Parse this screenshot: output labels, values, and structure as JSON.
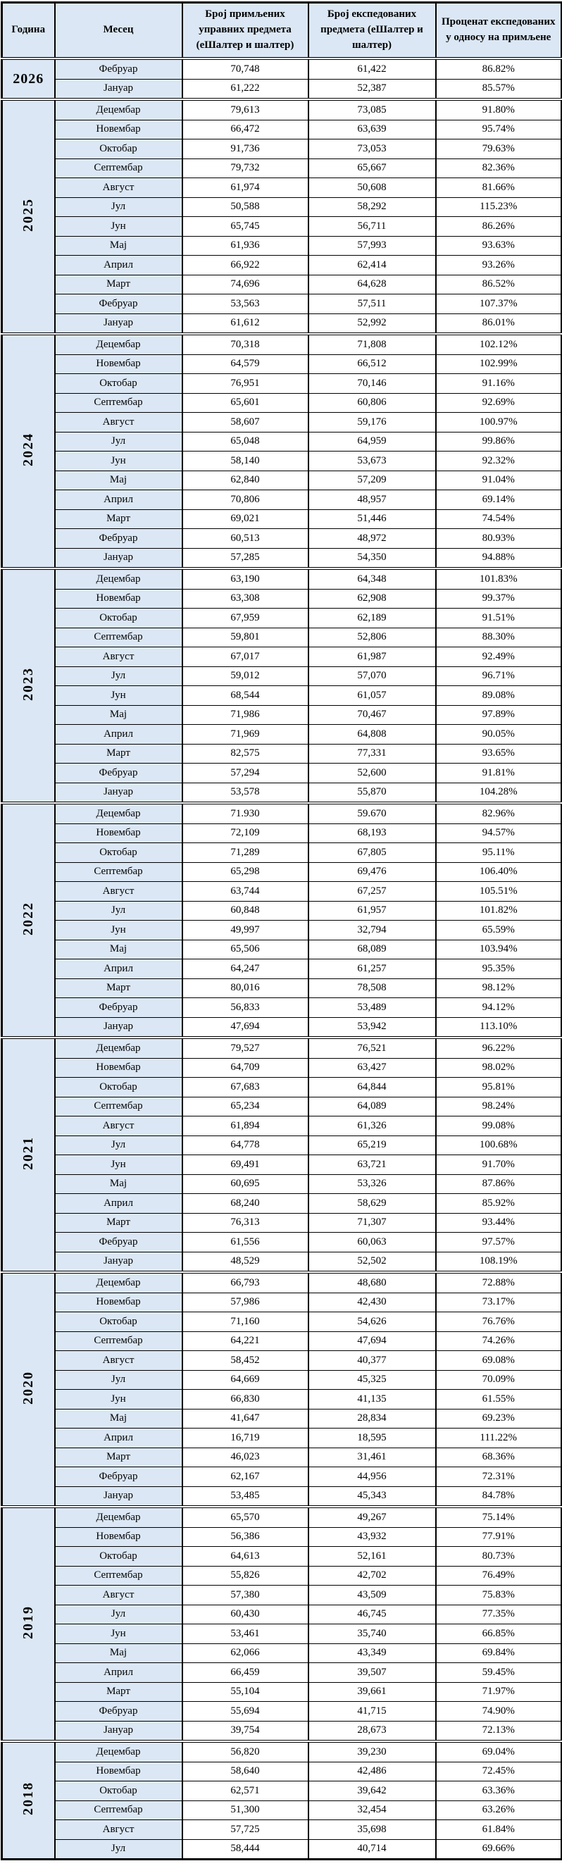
{
  "colors": {
    "header_bg": "#dbe7f4",
    "label_bg": "#dbe7f4",
    "data_bg": "#ffffff",
    "border": "#000000",
    "text": "#000000"
  },
  "headers": {
    "year": "Година",
    "month": "Месец",
    "received": "Број примљених управних предмета (еШалтер и шалтер)",
    "dispatched": "Број експедованих предмета (еШалтер и шалтер)",
    "percent": "Проценат експедованих у односу на примљене"
  },
  "groups": [
    {
      "year": "2026",
      "rows": [
        {
          "month": "Фебруар",
          "received": "70,748",
          "dispatched": "61,422",
          "percent": "86.82%"
        },
        {
          "month": "Јануар",
          "received": "61,222",
          "dispatched": "52,387",
          "percent": "85.57%"
        }
      ]
    },
    {
      "year": "2025",
      "rows": [
        {
          "month": "Децембар",
          "received": "79,613",
          "dispatched": "73,085",
          "percent": "91.80%"
        },
        {
          "month": "Новембар",
          "received": "66,472",
          "dispatched": "63,639",
          "percent": "95.74%"
        },
        {
          "month": "Октобар",
          "received": "91,736",
          "dispatched": "73,053",
          "percent": "79.63%"
        },
        {
          "month": "Септембар",
          "received": "79,732",
          "dispatched": "65,667",
          "percent": "82.36%"
        },
        {
          "month": "Август",
          "received": "61,974",
          "dispatched": "50,608",
          "percent": "81.66%"
        },
        {
          "month": "Јул",
          "received": "50,588",
          "dispatched": "58,292",
          "percent": "115.23%"
        },
        {
          "month": "Јун",
          "received": "65,745",
          "dispatched": "56,711",
          "percent": "86.26%"
        },
        {
          "month": "Мај",
          "received": "61,936",
          "dispatched": "57,993",
          "percent": "93.63%"
        },
        {
          "month": "Април",
          "received": "66,922",
          "dispatched": "62,414",
          "percent": "93.26%"
        },
        {
          "month": "Март",
          "received": "74,696",
          "dispatched": "64,628",
          "percent": "86.52%"
        },
        {
          "month": "Фебруар",
          "received": "53,563",
          "dispatched": "57,511",
          "percent": "107.37%"
        },
        {
          "month": "Јануар",
          "received": "61,612",
          "dispatched": "52,992",
          "percent": "86.01%"
        }
      ]
    },
    {
      "year": "2024",
      "rows": [
        {
          "month": "Децембар",
          "received": "70,318",
          "dispatched": "71,808",
          "percent": "102.12%"
        },
        {
          "month": "Новембар",
          "received": "64,579",
          "dispatched": "66,512",
          "percent": "102.99%"
        },
        {
          "month": "Октобар",
          "received": "76,951",
          "dispatched": "70,146",
          "percent": "91.16%"
        },
        {
          "month": "Септембар",
          "received": "65,601",
          "dispatched": "60,806",
          "percent": "92.69%"
        },
        {
          "month": "Август",
          "received": "58,607",
          "dispatched": "59,176",
          "percent": "100.97%"
        },
        {
          "month": "Јул",
          "received": "65,048",
          "dispatched": "64,959",
          "percent": "99.86%"
        },
        {
          "month": "Јун",
          "received": "58,140",
          "dispatched": "53,673",
          "percent": "92.32%"
        },
        {
          "month": "Мај",
          "received": "62,840",
          "dispatched": "57,209",
          "percent": "91.04%"
        },
        {
          "month": "Април",
          "received": "70,806",
          "dispatched": "48,957",
          "percent": "69.14%"
        },
        {
          "month": "Март",
          "received": "69,021",
          "dispatched": "51,446",
          "percent": "74.54%"
        },
        {
          "month": "Фебруар",
          "received": "60,513",
          "dispatched": "48,972",
          "percent": "80.93%"
        },
        {
          "month": "Јануар",
          "received": "57,285",
          "dispatched": "54,350",
          "percent": "94.88%"
        }
      ]
    },
    {
      "year": "2023",
      "rows": [
        {
          "month": "Децембар",
          "received": "63,190",
          "dispatched": "64,348",
          "percent": "101.83%"
        },
        {
          "month": "Новембар",
          "received": "63,308",
          "dispatched": "62,908",
          "percent": "99.37%"
        },
        {
          "month": "Октобар",
          "received": "67,959",
          "dispatched": "62,189",
          "percent": "91.51%"
        },
        {
          "month": "Септембар",
          "received": "59,801",
          "dispatched": "52,806",
          "percent": "88.30%"
        },
        {
          "month": "Август",
          "received": "67,017",
          "dispatched": "61,987",
          "percent": "92.49%"
        },
        {
          "month": "Јул",
          "received": "59,012",
          "dispatched": "57,070",
          "percent": "96.71%"
        },
        {
          "month": "Јун",
          "received": "68,544",
          "dispatched": "61,057",
          "percent": "89.08%"
        },
        {
          "month": "Мај",
          "received": "71,986",
          "dispatched": "70,467",
          "percent": "97.89%"
        },
        {
          "month": "Април",
          "received": "71,969",
          "dispatched": "64,808",
          "percent": "90.05%"
        },
        {
          "month": "Март",
          "received": "82,575",
          "dispatched": "77,331",
          "percent": "93.65%"
        },
        {
          "month": "Фебруар",
          "received": "57,294",
          "dispatched": "52,600",
          "percent": "91.81%"
        },
        {
          "month": "Јануар",
          "received": "53,578",
          "dispatched": "55,870",
          "percent": "104.28%"
        }
      ]
    },
    {
      "year": "2022",
      "rows": [
        {
          "month": "Децембар",
          "received": "71.930",
          "dispatched": "59.670",
          "percent": "82.96%"
        },
        {
          "month": "Новембар",
          "received": "72,109",
          "dispatched": "68,193",
          "percent": "94.57%"
        },
        {
          "month": "Октобар",
          "received": "71,289",
          "dispatched": "67,805",
          "percent": "95.11%"
        },
        {
          "month": "Септембар",
          "received": "65,298",
          "dispatched": "69,476",
          "percent": "106.40%"
        },
        {
          "month": "Август",
          "received": "63,744",
          "dispatched": "67,257",
          "percent": "105.51%"
        },
        {
          "month": "Јул",
          "received": "60,848",
          "dispatched": "61,957",
          "percent": "101.82%"
        },
        {
          "month": "Јун",
          "received": "49,997",
          "dispatched": "32,794",
          "percent": "65.59%"
        },
        {
          "month": "Мај",
          "received": "65,506",
          "dispatched": "68,089",
          "percent": "103.94%"
        },
        {
          "month": "Април",
          "received": "64,247",
          "dispatched": "61,257",
          "percent": "95.35%"
        },
        {
          "month": "Март",
          "received": "80,016",
          "dispatched": "78,508",
          "percent": "98.12%"
        },
        {
          "month": "Фебруар",
          "received": "56,833",
          "dispatched": "53,489",
          "percent": "94.12%"
        },
        {
          "month": "Јануар",
          "received": "47,694",
          "dispatched": "53,942",
          "percent": "113.10%"
        }
      ]
    },
    {
      "year": "2021",
      "rows": [
        {
          "month": "Децембар",
          "received": "79,527",
          "dispatched": "76,521",
          "percent": "96.22%"
        },
        {
          "month": "Новембар",
          "received": "64,709",
          "dispatched": "63,427",
          "percent": "98.02%"
        },
        {
          "month": "Октобар",
          "received": "67,683",
          "dispatched": "64,844",
          "percent": "95.81%"
        },
        {
          "month": "Септембар",
          "received": "65,234",
          "dispatched": "64,089",
          "percent": "98.24%"
        },
        {
          "month": "Август",
          "received": "61,894",
          "dispatched": "61,326",
          "percent": "99.08%"
        },
        {
          "month": "Јул",
          "received": "64,778",
          "dispatched": "65,219",
          "percent": "100.68%"
        },
        {
          "month": "Јун",
          "received": "69,491",
          "dispatched": "63,721",
          "percent": "91.70%"
        },
        {
          "month": "Мај",
          "received": "60,695",
          "dispatched": "53,326",
          "percent": "87.86%"
        },
        {
          "month": "Април",
          "received": "68,240",
          "dispatched": "58,629",
          "percent": "85.92%"
        },
        {
          "month": "Март",
          "received": "76,313",
          "dispatched": "71,307",
          "percent": "93.44%"
        },
        {
          "month": "Фебруар",
          "received": "61,556",
          "dispatched": "60,063",
          "percent": "97.57%"
        },
        {
          "month": "Јануар",
          "received": "48,529",
          "dispatched": "52,502",
          "percent": "108.19%"
        }
      ]
    },
    {
      "year": "2020",
      "rows": [
        {
          "month": "Децембар",
          "received": "66,793",
          "dispatched": "48,680",
          "percent": "72.88%"
        },
        {
          "month": "Новембар",
          "received": "57,986",
          "dispatched": "42,430",
          "percent": "73.17%"
        },
        {
          "month": "Октобар",
          "received": "71,160",
          "dispatched": "54,626",
          "percent": "76.76%"
        },
        {
          "month": "Септембар",
          "received": "64,221",
          "dispatched": "47,694",
          "percent": "74.26%"
        },
        {
          "month": "Август",
          "received": "58,452",
          "dispatched": "40,377",
          "percent": "69.08%"
        },
        {
          "month": "Јул",
          "received": "64,669",
          "dispatched": "45,325",
          "percent": "70.09%"
        },
        {
          "month": "Јун",
          "received": "66,830",
          "dispatched": "41,135",
          "percent": "61.55%"
        },
        {
          "month": "Мај",
          "received": "41,647",
          "dispatched": "28,834",
          "percent": "69.23%"
        },
        {
          "month": "Април",
          "received": "16,719",
          "dispatched": "18,595",
          "percent": "111.22%"
        },
        {
          "month": "Март",
          "received": "46,023",
          "dispatched": "31,461",
          "percent": "68.36%"
        },
        {
          "month": "Фебруар",
          "received": "62,167",
          "dispatched": "44,956",
          "percent": "72.31%"
        },
        {
          "month": "Јануар",
          "received": "53,485",
          "dispatched": "45,343",
          "percent": "84.78%"
        }
      ]
    },
    {
      "year": "2019",
      "rows": [
        {
          "month": "Децембар",
          "received": "65,570",
          "dispatched": "49,267",
          "percent": "75.14%"
        },
        {
          "month": "Новембар",
          "received": "56,386",
          "dispatched": "43,932",
          "percent": "77.91%"
        },
        {
          "month": "Октобар",
          "received": "64,613",
          "dispatched": "52,161",
          "percent": "80.73%"
        },
        {
          "month": "Септембар",
          "received": "55,826",
          "dispatched": "42,702",
          "percent": "76.49%"
        },
        {
          "month": "Август",
          "received": "57,380",
          "dispatched": "43,509",
          "percent": "75.83%"
        },
        {
          "month": "Јул",
          "received": "60,430",
          "dispatched": "46,745",
          "percent": "77.35%"
        },
        {
          "month": "Јун",
          "received": "53,461",
          "dispatched": "35,740",
          "percent": "66.85%"
        },
        {
          "month": "Мај",
          "received": "62,066",
          "dispatched": "43,349",
          "percent": "69.84%"
        },
        {
          "month": "Април",
          "received": "66,459",
          "dispatched": "39,507",
          "percent": "59.45%"
        },
        {
          "month": "Март",
          "received": "55,104",
          "dispatched": "39,661",
          "percent": "71.97%"
        },
        {
          "month": "Фебруар",
          "received": "55,694",
          "dispatched": "41,715",
          "percent": "74.90%"
        },
        {
          "month": "Јануар",
          "received": "39,754",
          "dispatched": "28,673",
          "percent": "72.13%"
        }
      ]
    },
    {
      "year": "2018",
      "rows": [
        {
          "month": "Децембар",
          "received": "56,820",
          "dispatched": "39,230",
          "percent": "69.04%"
        },
        {
          "month": "Новембар",
          "received": "58,640",
          "dispatched": "42,486",
          "percent": "72.45%"
        },
        {
          "month": "Октобар",
          "received": "62,571",
          "dispatched": "39,642",
          "percent": "63.36%"
        },
        {
          "month": "Септембар",
          "received": "51,300",
          "dispatched": "32,454",
          "percent": "63.26%"
        },
        {
          "month": "Август",
          "received": "57,725",
          "dispatched": "35,698",
          "percent": "61.84%"
        },
        {
          "month": "Јул",
          "received": "58,444",
          "dispatched": "40,714",
          "percent": "69.66%"
        }
      ]
    }
  ]
}
